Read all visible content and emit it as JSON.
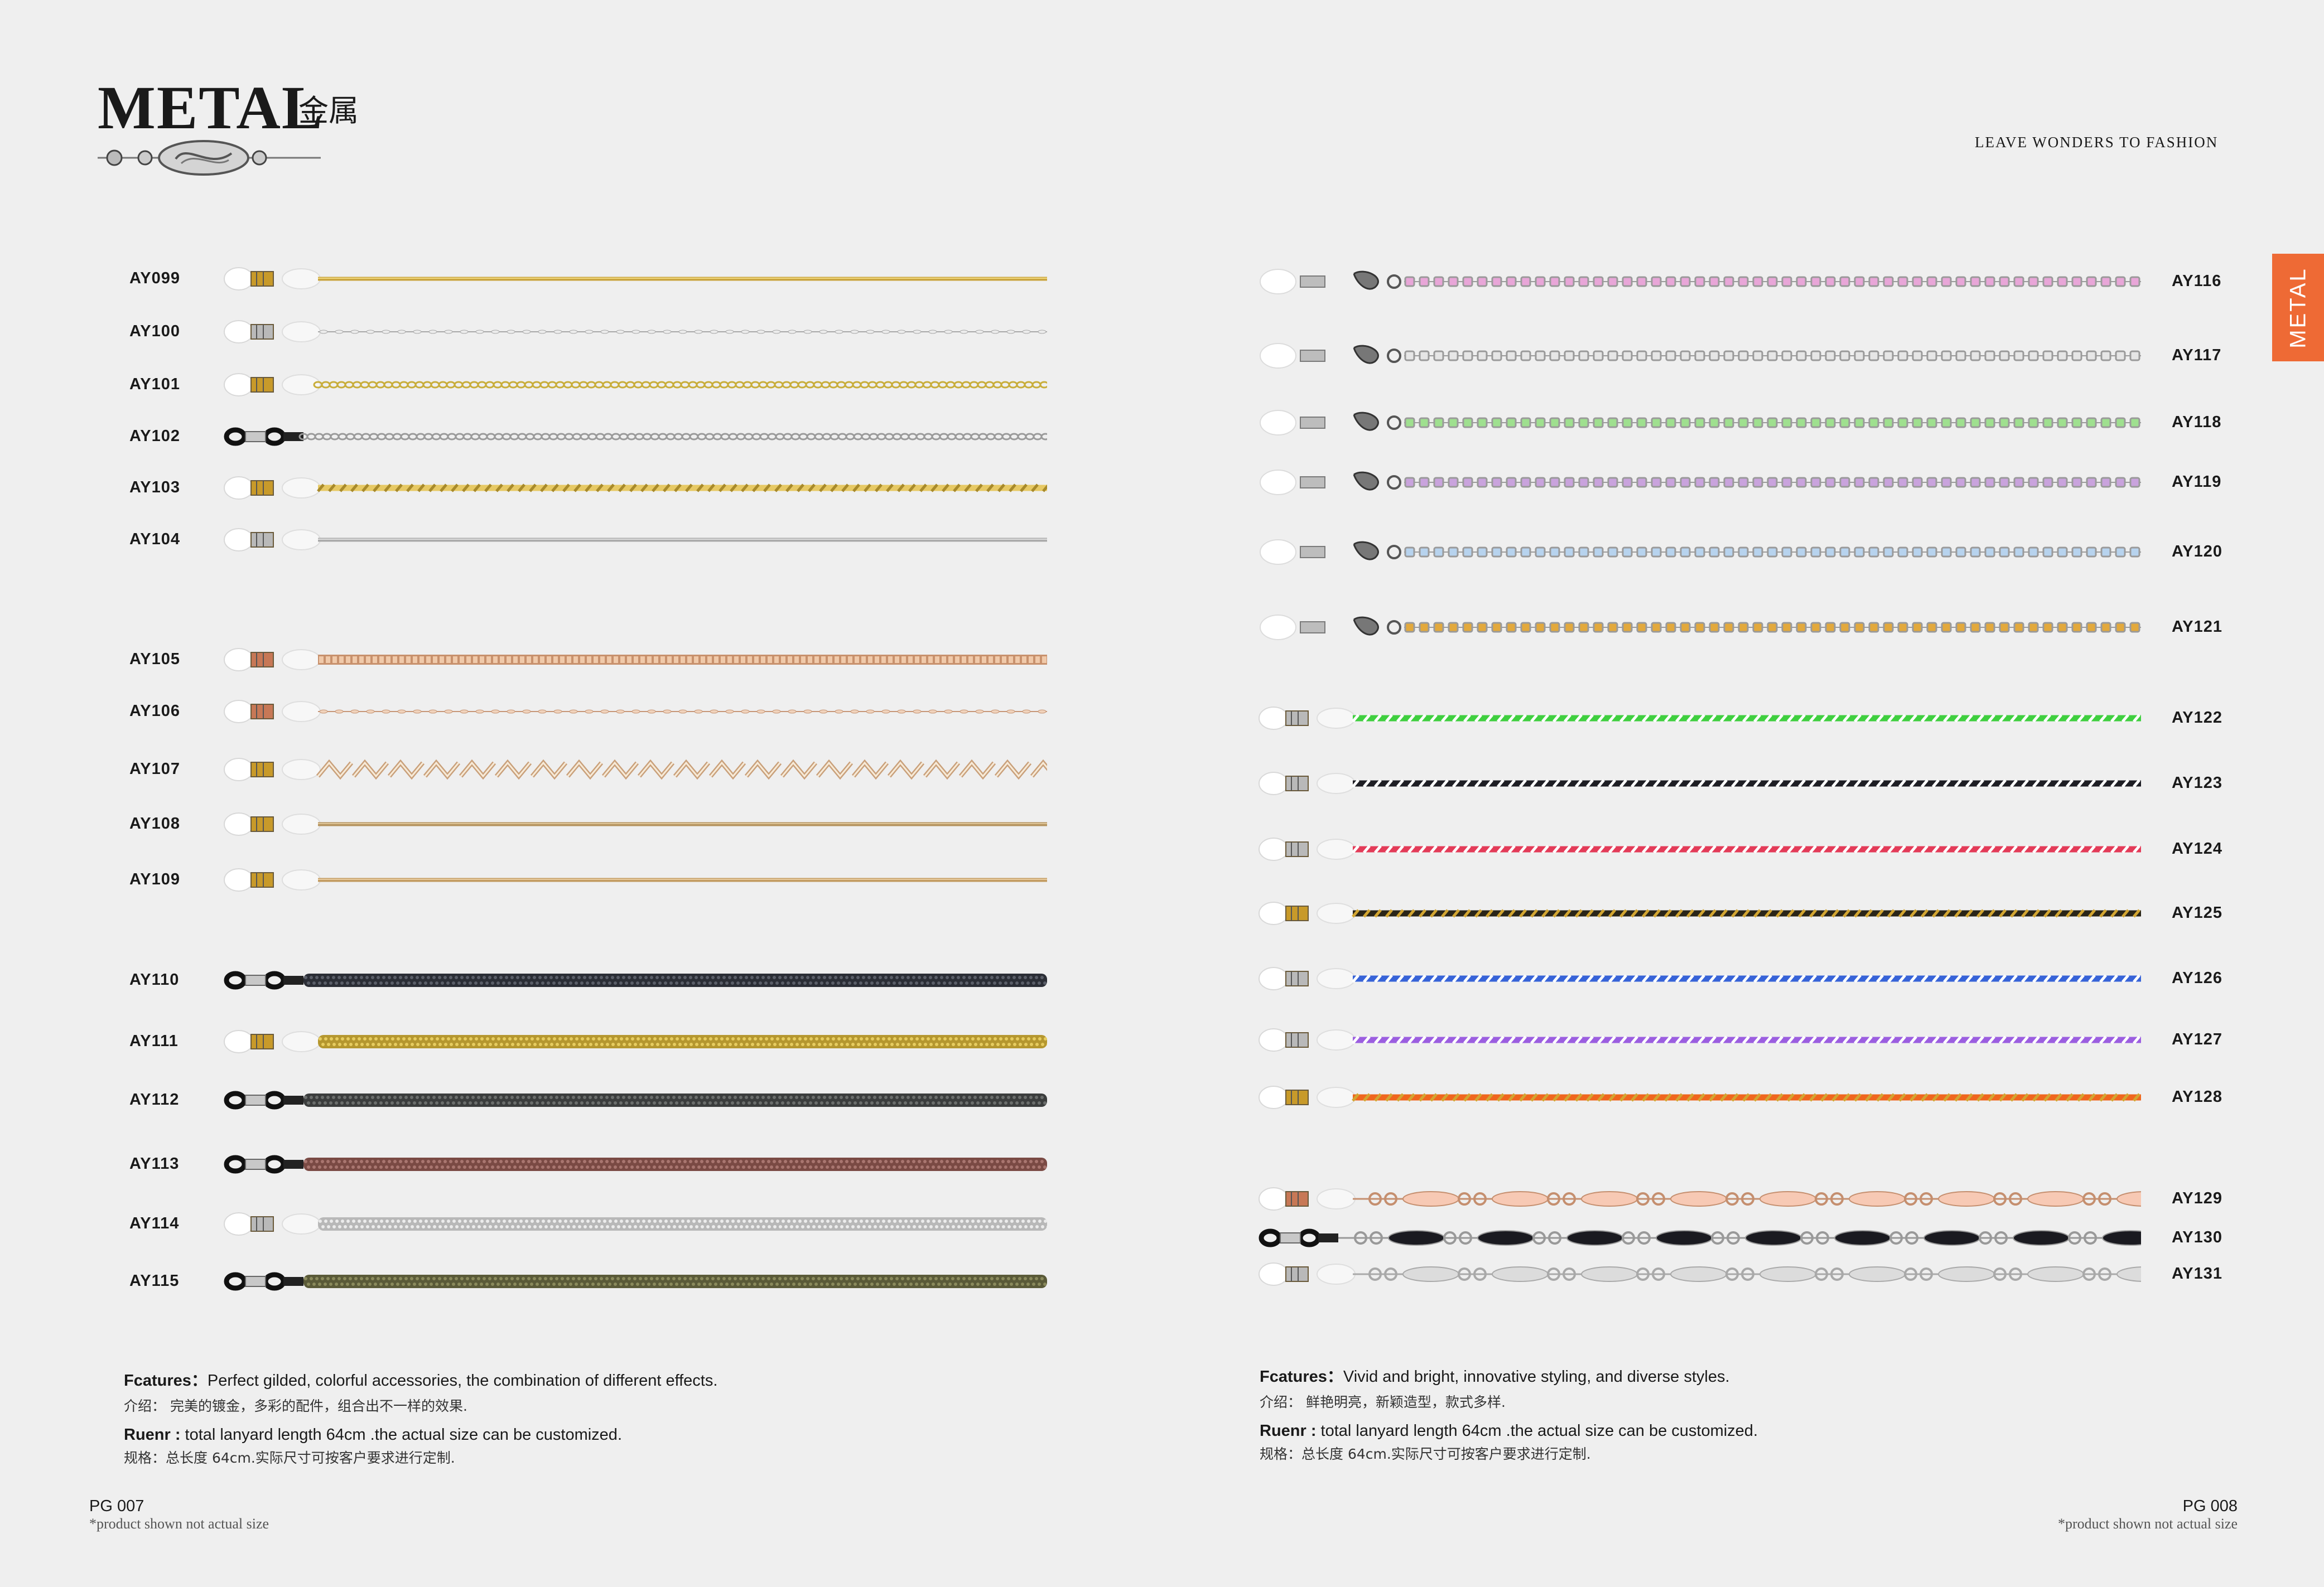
{
  "header": {
    "brand": "METAL",
    "brand_cn": "金属",
    "tagline": "LEAVE WONDERS TO FASHION",
    "side_tab": "METAL"
  },
  "colors": {
    "accent": "#ee6a35",
    "background": "#efefef"
  },
  "left": {
    "products": [
      {
        "code": "AY099",
        "style": "fine",
        "end": "clear-gold",
        "colors": [
          "#c9a43f",
          "#f0d77a"
        ]
      },
      {
        "code": "AY100",
        "style": "dots",
        "end": "clear-silver",
        "colors": [
          "#a8a8a8",
          "#ececec"
        ]
      },
      {
        "code": "AY101",
        "style": "curb",
        "end": "clear-gold",
        "colors": [
          "#c8ad3a",
          "#f4e48a"
        ]
      },
      {
        "code": "AY102",
        "style": "curb",
        "end": "black",
        "colors": [
          "#9a9a9a",
          "#f0f0f0"
        ]
      },
      {
        "code": "AY103",
        "style": "twist",
        "end": "clear-gold",
        "colors": [
          "#a88a2a",
          "#e7c964"
        ]
      },
      {
        "code": "AY104",
        "style": "fine",
        "end": "clear-silver",
        "colors": [
          "#aaaaaa",
          "#dddddd"
        ]
      },
      {
        "code": "AY105",
        "style": "box",
        "end": "clear-rose",
        "colors": [
          "#c8916d",
          "#f0c9a9"
        ]
      },
      {
        "code": "AY106",
        "style": "dots",
        "end": "clear-rose",
        "colors": [
          "#c69677",
          "#f0d2bb"
        ]
      },
      {
        "code": "AY107",
        "style": "zigzag",
        "end": "clear-gold",
        "colors": [
          "#c9a07a",
          "#f7ead7"
        ]
      },
      {
        "code": "AY108",
        "style": "fine",
        "end": "clear-gold",
        "colors": [
          "#b4935e",
          "#e0c79a"
        ]
      },
      {
        "code": "AY109",
        "style": "fine",
        "end": "clear-gold",
        "colors": [
          "#c29b60",
          "#e8cca0"
        ]
      },
      {
        "code": "AY110",
        "style": "mesh",
        "end": "black",
        "colors": [
          "#2b2e36",
          "#5a5e68"
        ]
      },
      {
        "code": "AY111",
        "style": "mesh",
        "end": "clear-gold",
        "colors": [
          "#b5972f",
          "#e6cc60"
        ]
      },
      {
        "code": "AY112",
        "style": "mesh",
        "end": "black",
        "colors": [
          "#3b3d3d",
          "#6b6e6c"
        ]
      },
      {
        "code": "AY113",
        "style": "mesh",
        "end": "black",
        "colors": [
          "#7a4a44",
          "#a97670"
        ]
      },
      {
        "code": "AY114",
        "style": "mesh",
        "end": "clear-silver",
        "colors": [
          "#b8b8b8",
          "#ececec"
        ]
      },
      {
        "code": "AY115",
        "style": "mesh",
        "end": "black",
        "colors": [
          "#5a5a38",
          "#8a8a5c"
        ]
      }
    ],
    "features_label": "Fcatures：",
    "features_text": "Perfect gilded, colorful accessories, the combination of different effects.",
    "features_cn": "介绍：  完美的镀金，多彩的配件，组合出不一样的效果.",
    "spec_label": "Ruenr :",
    "spec_text": " total lanyard length 64cm .the actual size can be customized.",
    "spec_cn": "规格：总长度 64cm.实际尺寸可按客户要求进行定制.",
    "page": "PG 007",
    "note": "*product shown not actual size"
  },
  "right": {
    "products": [
      {
        "code": "AY116",
        "style": "rhinestone",
        "end": "clasp",
        "colors": [
          "#9a9a9a",
          "#e8a6d8"
        ]
      },
      {
        "code": "AY117",
        "style": "rhinestone",
        "end": "clasp",
        "colors": [
          "#9a9a9a",
          "#e6e6e6"
        ]
      },
      {
        "code": "AY118",
        "style": "rhinestone",
        "end": "clasp",
        "colors": [
          "#9a9a9a",
          "#9fe08f"
        ]
      },
      {
        "code": "AY119",
        "style": "rhinestone",
        "end": "clasp",
        "colors": [
          "#9a9a9a",
          "#c9a3dd"
        ]
      },
      {
        "code": "AY120",
        "style": "rhinestone",
        "end": "clasp",
        "colors": [
          "#9a9a9a",
          "#b7d3ee"
        ]
      },
      {
        "code": "AY121",
        "style": "rhinestone",
        "end": "clasp",
        "colors": [
          "#9a9a9a",
          "#e3a93c"
        ]
      },
      {
        "code": "AY122",
        "style": "twist",
        "end": "clear-silver",
        "colors": [
          "#ffffff",
          "#3fcf3f"
        ]
      },
      {
        "code": "AY123",
        "style": "twist",
        "end": "clear-silver",
        "colors": [
          "#ffffff",
          "#1e1e24"
        ]
      },
      {
        "code": "AY124",
        "style": "twist",
        "end": "clear-silver",
        "colors": [
          "#ffffff",
          "#e33b58"
        ]
      },
      {
        "code": "AY125",
        "style": "twist",
        "end": "clear-gold",
        "colors": [
          "#d2a531",
          "#2a2518"
        ]
      },
      {
        "code": "AY126",
        "style": "twist",
        "end": "clear-silver",
        "colors": [
          "#ffffff",
          "#3763d8"
        ]
      },
      {
        "code": "AY127",
        "style": "twist",
        "end": "clear-silver",
        "colors": [
          "#ffffff",
          "#9b5ee0"
        ]
      },
      {
        "code": "AY128",
        "style": "twist",
        "end": "clear-gold",
        "colors": [
          "#d2a531",
          "#f0661e"
        ]
      },
      {
        "code": "AY129",
        "style": "link",
        "end": "clear-rose",
        "colors": [
          "#c58f6f",
          "#f7c9b4"
        ]
      },
      {
        "code": "AY130",
        "style": "link",
        "end": "black",
        "colors": [
          "#999999",
          "#1a1a20"
        ]
      },
      {
        "code": "AY131",
        "style": "link",
        "end": "clear-silver",
        "colors": [
          "#a9a9a9",
          "#dcdcdc"
        ]
      }
    ],
    "features_label": "Fcatures：",
    "features_text": "Vivid and bright, innovative styling, and diverse styles.",
    "features_cn": "介绍：  鲜艳明亮，新颖造型，款式多样.",
    "spec_label": "Ruenr :",
    "spec_text": " total lanyard length 64cm .the actual size can be customized.",
    "spec_cn": "规格：总长度 64cm.实际尺寸可按客户要求进行定制.",
    "page": "PG 008",
    "note": "*product shown not actual size"
  }
}
